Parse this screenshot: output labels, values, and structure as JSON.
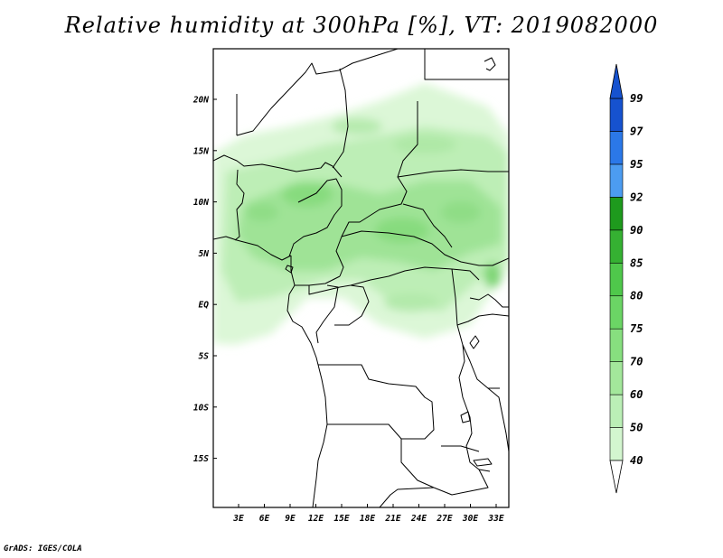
{
  "title": "Relative humidity at 300hPa [%], VT: 2019082000",
  "credit": "GrADS: IGES/COLA",
  "map": {
    "x_ticks": [
      "3E",
      "6E",
      "9E",
      "12E",
      "15E",
      "18E",
      "21E",
      "24E",
      "27E",
      "30E",
      "33E"
    ],
    "y_ticks": [
      "20N",
      "15N",
      "10N",
      "5N",
      "EQ",
      "5S",
      "10S",
      "15S"
    ]
  },
  "colorbar": {
    "labels": [
      "40",
      "50",
      "60",
      "70",
      "75",
      "80",
      "85",
      "90",
      "92",
      "95",
      "97",
      "99"
    ],
    "colors": [
      "#e8fbe6",
      "#d3f6cf",
      "#bbefb6",
      "#a3e79b",
      "#87df7f",
      "#6bd565",
      "#4fc84b",
      "#35b132",
      "#1e9a1d",
      "#4c9cf1",
      "#2b78e8",
      "#1652cf"
    ]
  }
}
